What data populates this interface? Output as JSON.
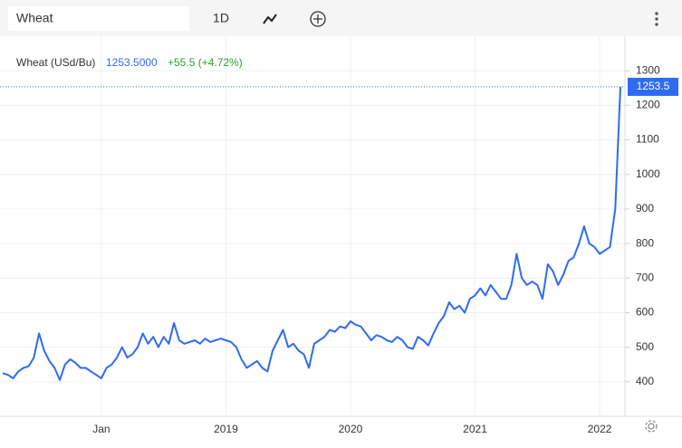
{
  "toolbar": {
    "symbol": "Wheat",
    "interval": "1D"
  },
  "chart_data": {
    "type": "line",
    "title": "Wheat (USd/Bu)",
    "annotations": [
      "1253.5000",
      "+55.5 (+4.72%)"
    ],
    "categories": [
      null,
      null,
      null,
      null,
      null,
      null,
      null,
      null,
      null,
      null,
      null,
      null,
      null,
      null,
      null,
      null,
      null,
      null,
      null,
      "Jan",
      null,
      null,
      null,
      null,
      null,
      null,
      null,
      null,
      null,
      null,
      null,
      null,
      null,
      null,
      null,
      null,
      null,
      null,
      null,
      null,
      null,
      null,
      null,
      "2019",
      null,
      null,
      null,
      null,
      null,
      null,
      null,
      null,
      null,
      null,
      null,
      null,
      null,
      null,
      null,
      null,
      null,
      null,
      null,
      null,
      null,
      null,
      null,
      "2020",
      null,
      null,
      null,
      null,
      null,
      null,
      null,
      null,
      null,
      null,
      null,
      null,
      null,
      null,
      null,
      null,
      null,
      null,
      null,
      null,
      null,
      null,
      null,
      "2021",
      null,
      null,
      null,
      null,
      null,
      null,
      null,
      null,
      null,
      null,
      null,
      null,
      null,
      null,
      null,
      null,
      null,
      null,
      null,
      null,
      null,
      null,
      null,
      "2022",
      null,
      null,
      null,
      null
    ],
    "series": [
      {
        "name": "Wheat (USd/Bu)",
        "color": "#2f6bf0",
        "values": [
          425,
          420,
          410,
          430,
          440,
          445,
          470,
          540,
          490,
          460,
          440,
          405,
          450,
          465,
          455,
          440,
          440,
          430,
          420,
          410,
          440,
          450,
          470,
          500,
          470,
          480,
          500,
          540,
          510,
          530,
          500,
          530,
          510,
          570,
          520,
          510,
          515,
          520,
          510,
          525,
          515,
          520,
          525,
          520,
          515,
          500,
          465,
          440,
          450,
          460,
          440,
          430,
          490,
          520,
          550,
          500,
          510,
          490,
          480,
          440,
          510,
          520,
          530,
          550,
          545,
          560,
          555,
          575,
          565,
          560,
          540,
          520,
          535,
          530,
          520,
          515,
          530,
          520,
          500,
          495,
          530,
          520,
          505,
          540,
          570,
          590,
          630,
          610,
          620,
          600,
          640,
          650,
          670,
          650,
          680,
          660,
          640,
          640,
          680,
          770,
          700,
          680,
          690,
          680,
          640,
          740,
          720,
          680,
          710,
          750,
          760,
          800,
          850,
          800,
          790,
          770,
          780,
          790,
          900,
          1253.5
        ]
      }
    ],
    "ylim": [
      300,
      1400
    ],
    "yticks": [
      400,
      500,
      600,
      700,
      800,
      900,
      1000,
      1100,
      1200,
      1300
    ],
    "grid": true
  }
}
